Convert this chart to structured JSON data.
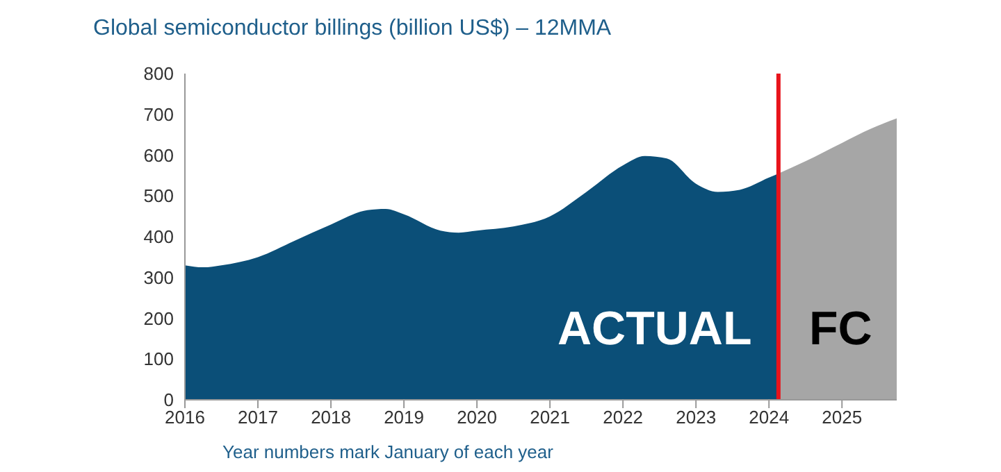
{
  "chart_data": {
    "type": "area",
    "title": "Global semiconductor billings (billion US$) – 12MMA",
    "series": [
      {
        "color": "#0b4f78",
        "x": [
          2016,
          2016.25,
          2016.5,
          2017,
          2017.5,
          2018,
          2018.5,
          2018.75,
          2019,
          2019.5,
          2019.75,
          2020,
          2020.5,
          2021,
          2021.5,
          2022,
          2022.3,
          2022.6,
          2023,
          2023.3,
          2023.6,
          2024,
          2024.13
        ],
        "values": [
          330,
          325,
          330,
          350,
          390,
          430,
          465,
          468,
          455,
          415,
          410,
          415,
          425,
          450,
          510,
          575,
          598,
          592,
          530,
          510,
          515,
          545,
          555
        ]
      },
      {
        "color": "#a6a6a6",
        "x": [
          2024.13,
          2024.5,
          2025,
          2025.4,
          2025.75
        ],
        "values": [
          555,
          585,
          630,
          665,
          690
        ]
      }
    ],
    "xlim": [
      2016,
      2025.75
    ],
    "xticks": [
      2016,
      2017,
      2018,
      2019,
      2020,
      2021,
      2022,
      2023,
      2024,
      2025
    ],
    "ylim": [
      0,
      800
    ],
    "yticks": [
      0,
      100,
      200,
      300,
      400,
      500,
      600,
      700,
      800
    ],
    "grid": false,
    "legend": false,
    "ref_lines": [
      {
        "axis": "x",
        "value": 2024.13,
        "color": "#e8131b"
      }
    ],
    "annotations": [
      "ACTUAL",
      "FC",
      "Year numbers mark January of each year"
    ]
  }
}
